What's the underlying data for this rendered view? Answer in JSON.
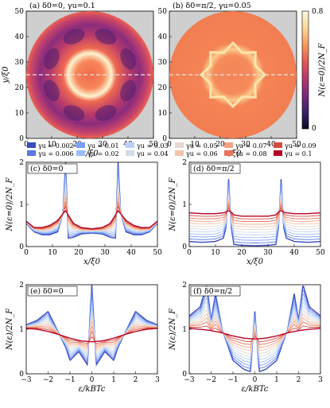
{
  "colorbar": {
    "min": 0,
    "max": 0.8,
    "ticks": [
      "0",
      "0.8"
    ],
    "label": "N(ε=0)/2N_F",
    "colors": [
      "#0d0a29",
      "#3b1f6e",
      "#7a2a7a",
      "#b6366b",
      "#e35a55",
      "#f89a5c",
      "#fdd79a",
      "#fdfbe0"
    ]
  },
  "legend": {
    "entries": [
      "γu = 0.002",
      "γu = 0.006",
      "γu = 0.01",
      "γu = 0.02",
      "γu = 0.03",
      "γu = 0.04",
      "γu = 0.05",
      "γu = 0.06",
      "γu = 0.07",
      "γu = 0.08",
      "γu = 0.09",
      "γu = 0.1"
    ],
    "colors": [
      "#3b4cc0",
      "#5a78e0",
      "#7b9ff9",
      "#9bbcff",
      "#b9d0f9",
      "#d3dbe7",
      "#e6d7cf",
      "#f1c3aa",
      "#f4a282",
      "#e7745b",
      "#d24b40",
      "#b40426"
    ]
  },
  "chart_data": [
    {
      "type": "heatmap",
      "panel": "(a)",
      "title": "(a)  δ0=0, γu=0.1",
      "xlabel": "x/ξ0",
      "ylabel": "y/ξ0",
      "xlim": [
        0,
        50
      ],
      "ylim": [
        0,
        50
      ],
      "xticks": [
        0,
        10,
        20,
        30,
        40,
        50
      ],
      "yticks": [
        0,
        10,
        20,
        30,
        40,
        50
      ],
      "dashed_line_y": 25
    },
    {
      "type": "heatmap",
      "panel": "(b)",
      "title": "(b)  δ0=π/2, γu=0.05",
      "xlabel": "x/ξ0",
      "ylabel": "",
      "xlim": [
        0,
        50
      ],
      "ylim": [
        0,
        50
      ],
      "xticks": [
        0,
        10,
        20,
        30,
        40,
        50
      ],
      "yticks": [
        0,
        10,
        20,
        30,
        40,
        50
      ],
      "dashed_line_y": 25
    },
    {
      "type": "line",
      "panel": "(c)",
      "title": "(c)  δ0=0",
      "xlabel": "x/ξ0",
      "ylabel": "N(ε=0)/2N_F",
      "xlim": [
        0,
        50
      ],
      "ylim": [
        0,
        2
      ],
      "xticks": [
        0,
        10,
        20,
        30,
        40,
        50
      ],
      "yticks": [
        0,
        1,
        2
      ],
      "series": [
        {
          "name": "γu = 0.002",
          "x": [
            0,
            3,
            6,
            9,
            12,
            14,
            15,
            16,
            18,
            21,
            25,
            29,
            32,
            34,
            35,
            36,
            38,
            41,
            44,
            47,
            50
          ],
          "y": [
            0.55,
            0.35,
            0.28,
            0.28,
            0.35,
            0.8,
            2.0,
            0.2,
            0.22,
            0.3,
            0.32,
            0.3,
            0.22,
            0.2,
            2.0,
            0.8,
            0.35,
            0.28,
            0.28,
            0.35,
            0.55
          ]
        },
        {
          "name": "γu = 0.1",
          "x": [
            0,
            3,
            6,
            9,
            12,
            14,
            15,
            16,
            18,
            21,
            25,
            29,
            32,
            34,
            35,
            36,
            38,
            41,
            44,
            47,
            50
          ],
          "y": [
            0.6,
            0.45,
            0.45,
            0.5,
            0.62,
            0.78,
            0.85,
            0.75,
            0.55,
            0.45,
            0.42,
            0.45,
            0.55,
            0.75,
            0.85,
            0.78,
            0.62,
            0.5,
            0.45,
            0.45,
            0.6
          ]
        }
      ]
    },
    {
      "type": "line",
      "panel": "(d)",
      "title": "(d)  δ0=π/2",
      "xlabel": "x/ξ0",
      "ylabel": "N(ε=0)/2N_F",
      "xlim": [
        0,
        50
      ],
      "ylim": [
        0,
        2
      ],
      "xticks": [
        0,
        10,
        20,
        30,
        40,
        50
      ],
      "yticks": [
        0,
        1,
        2
      ],
      "series": [
        {
          "name": "γu = 0.002",
          "x": [
            0,
            5,
            10,
            13,
            14,
            15,
            16,
            17,
            20,
            25,
            30,
            33,
            34,
            35,
            36,
            37,
            40,
            45,
            50
          ],
          "y": [
            0.12,
            0.1,
            0.12,
            0.2,
            0.45,
            1.6,
            0.45,
            0.05,
            0.03,
            0.02,
            0.03,
            0.05,
            0.45,
            1.6,
            0.45,
            0.2,
            0.12,
            0.1,
            0.12
          ]
        },
        {
          "name": "γu = 0.1",
          "x": [
            0,
            5,
            10,
            13,
            14,
            15,
            16,
            17,
            20,
            25,
            30,
            33,
            34,
            35,
            36,
            37,
            40,
            45,
            50
          ],
          "y": [
            0.8,
            0.78,
            0.78,
            0.8,
            0.82,
            0.85,
            0.82,
            0.75,
            0.72,
            0.72,
            0.72,
            0.75,
            0.82,
            0.85,
            0.82,
            0.8,
            0.78,
            0.78,
            0.8
          ]
        }
      ]
    },
    {
      "type": "line",
      "panel": "(e)",
      "title": "(e)  δ0=0",
      "xlabel": "ε/kBTc",
      "ylabel": "N(ε)/2N_F",
      "xlim": [
        -3,
        3
      ],
      "ylim": [
        0,
        2
      ],
      "xticks": [
        -3,
        -2,
        -1,
        0,
        1,
        2,
        3
      ],
      "yticks": [
        0,
        1,
        2
      ],
      "series": [
        {
          "name": "γu = 0.002",
          "x": [
            -3,
            -2.5,
            -2,
            -1.5,
            -1.2,
            -1,
            -0.6,
            -0.2,
            0,
            0.2,
            0.6,
            1,
            1.2,
            1.5,
            2,
            2.5,
            3
          ],
          "y": [
            1.1,
            1.2,
            1.4,
            0.9,
            0.6,
            0.3,
            0.5,
            0.2,
            2.0,
            0.2,
            0.5,
            0.3,
            0.6,
            0.9,
            1.4,
            1.2,
            1.1
          ]
        },
        {
          "name": "γu = 0.1",
          "x": [
            -3,
            -2.5,
            -2,
            -1.5,
            -1,
            -0.5,
            0,
            0.5,
            1,
            1.5,
            2,
            2.5,
            3
          ],
          "y": [
            1.02,
            1.0,
            0.95,
            0.88,
            0.8,
            0.74,
            0.72,
            0.74,
            0.8,
            0.88,
            0.95,
            1.0,
            1.02
          ]
        }
      ]
    },
    {
      "type": "line",
      "panel": "(f)",
      "title": "(f)  δ0=π/2",
      "xlabel": "ε/kBTc",
      "ylabel": "N(ε)/2N_F",
      "xlim": [
        -3,
        3
      ],
      "ylim": [
        0,
        2
      ],
      "xticks": [
        -3,
        -2,
        -1,
        0,
        1,
        2,
        3
      ],
      "yticks": [
        0,
        1,
        2
      ],
      "series": [
        {
          "name": "γu = 0.002",
          "x": [
            -3,
            -2.5,
            -2.2,
            -2,
            -1.8,
            -1.5,
            -1,
            -0.5,
            -0.2,
            0,
            0.2,
            0.5,
            1,
            1.5,
            1.8,
            2,
            2.2,
            2.5,
            3
          ],
          "y": [
            1.3,
            1.5,
            2.0,
            1.2,
            1.8,
            1.0,
            0.3,
            0.1,
            0.05,
            1.4,
            0.05,
            0.1,
            0.3,
            1.0,
            1.8,
            1.2,
            2.0,
            1.5,
            1.3
          ]
        },
        {
          "name": "γu = 0.1",
          "x": [
            -3,
            -2.5,
            -2,
            -1.5,
            -1,
            -0.5,
            0,
            0.5,
            1,
            1.5,
            2,
            2.5,
            3
          ],
          "y": [
            1.02,
            1.0,
            0.97,
            0.92,
            0.85,
            0.8,
            0.78,
            0.8,
            0.85,
            0.92,
            0.97,
            1.0,
            1.02
          ]
        }
      ]
    }
  ]
}
